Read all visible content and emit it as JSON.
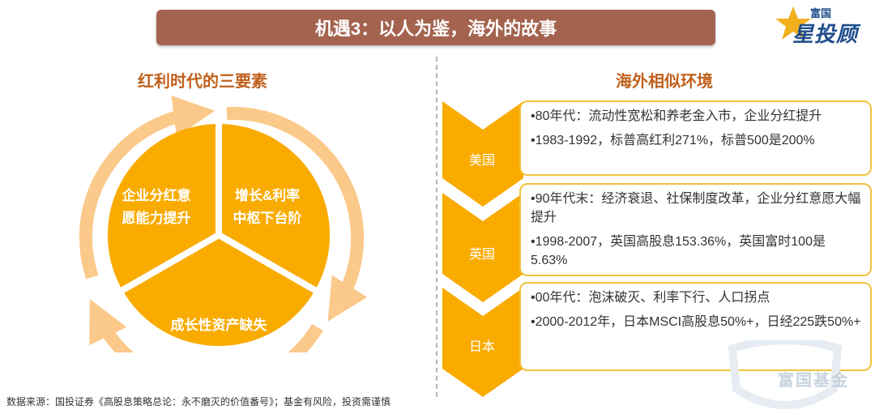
{
  "header": {
    "title": "机遇3：以人为鉴，海外的故事"
  },
  "logo": {
    "top_text": "富国",
    "main_text": "星投顾",
    "icon": "star-icon"
  },
  "left": {
    "title": "红利时代的三要素",
    "segments": [
      {
        "text_line1": "企业分红意",
        "text_line2": "愿能力提升"
      },
      {
        "text_line1": "增长&利率",
        "text_line2": "中枢下台阶"
      },
      {
        "text_line1": "成长性资产缺失"
      }
    ]
  },
  "right": {
    "title": "海外相似环境",
    "countries": [
      {
        "name": "美国",
        "bullets": [
          "•80年代：流动性宽松和养老金入市，企业分红提升",
          "•1983-1992，标普高红利271%，标普500是200%"
        ]
      },
      {
        "name": "英国",
        "bullets": [
          "•90年代末：经济衰退、社保制度改革，企业分红意愿大幅提升",
          "•1998-2007，英国高股息153.36%，英国富时100是5.63%"
        ]
      },
      {
        "name": "日本",
        "bullets": [
          "•00年代：泡沫破灭、利率下行、人口拐点",
          "•2000-2012年，日本MSCI高股息50%+，日经225跌50%+"
        ]
      }
    ]
  },
  "footer": {
    "source": "数据来源：国投证券《高股息策略总论：永不磨灭的价值番号》；基金有风险，投资需谨慎"
  },
  "watermark": {
    "text": "富国基金"
  },
  "colors": {
    "title_bg": "#a4634e",
    "orange": "#f9ab00",
    "light_orange": "#fbc98a",
    "section_title": "#c0601c",
    "box_border": "#f2c23a"
  }
}
